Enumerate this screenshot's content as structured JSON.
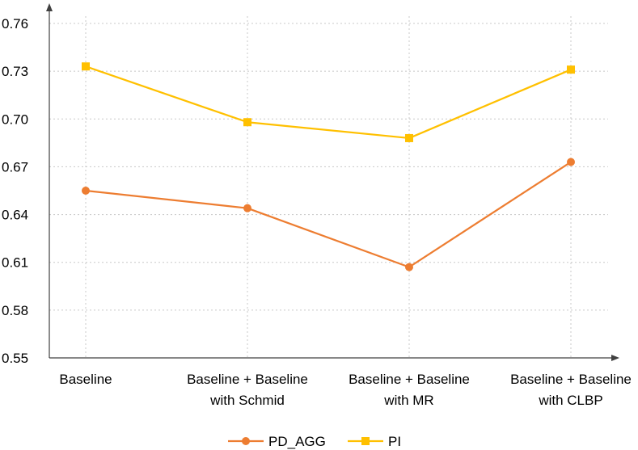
{
  "chart_data": {
    "type": "line",
    "categories": [
      [
        "Baseline"
      ],
      [
        "Baseline + Baseline",
        "with Schmid"
      ],
      [
        "Baseline + Baseline",
        "with MR"
      ],
      [
        "Baseline + Baseline",
        "with CLBP"
      ]
    ],
    "series": [
      {
        "name": "PD_AGG",
        "color": "#ED7D31",
        "marker": "circle",
        "values": [
          0.655,
          0.644,
          0.607,
          0.673
        ]
      },
      {
        "name": "PI",
        "color": "#FFC000",
        "marker": "square",
        "values": [
          0.733,
          0.698,
          0.688,
          0.731
        ]
      }
    ],
    "y_ticks": [
      "0.55",
      "0.58",
      "0.61",
      "0.64",
      "0.67",
      "0.70",
      "0.73",
      "0.76"
    ],
    "ylim": [
      0.55,
      0.76
    ],
    "grid": "dotted",
    "legend_position": "bottom"
  }
}
